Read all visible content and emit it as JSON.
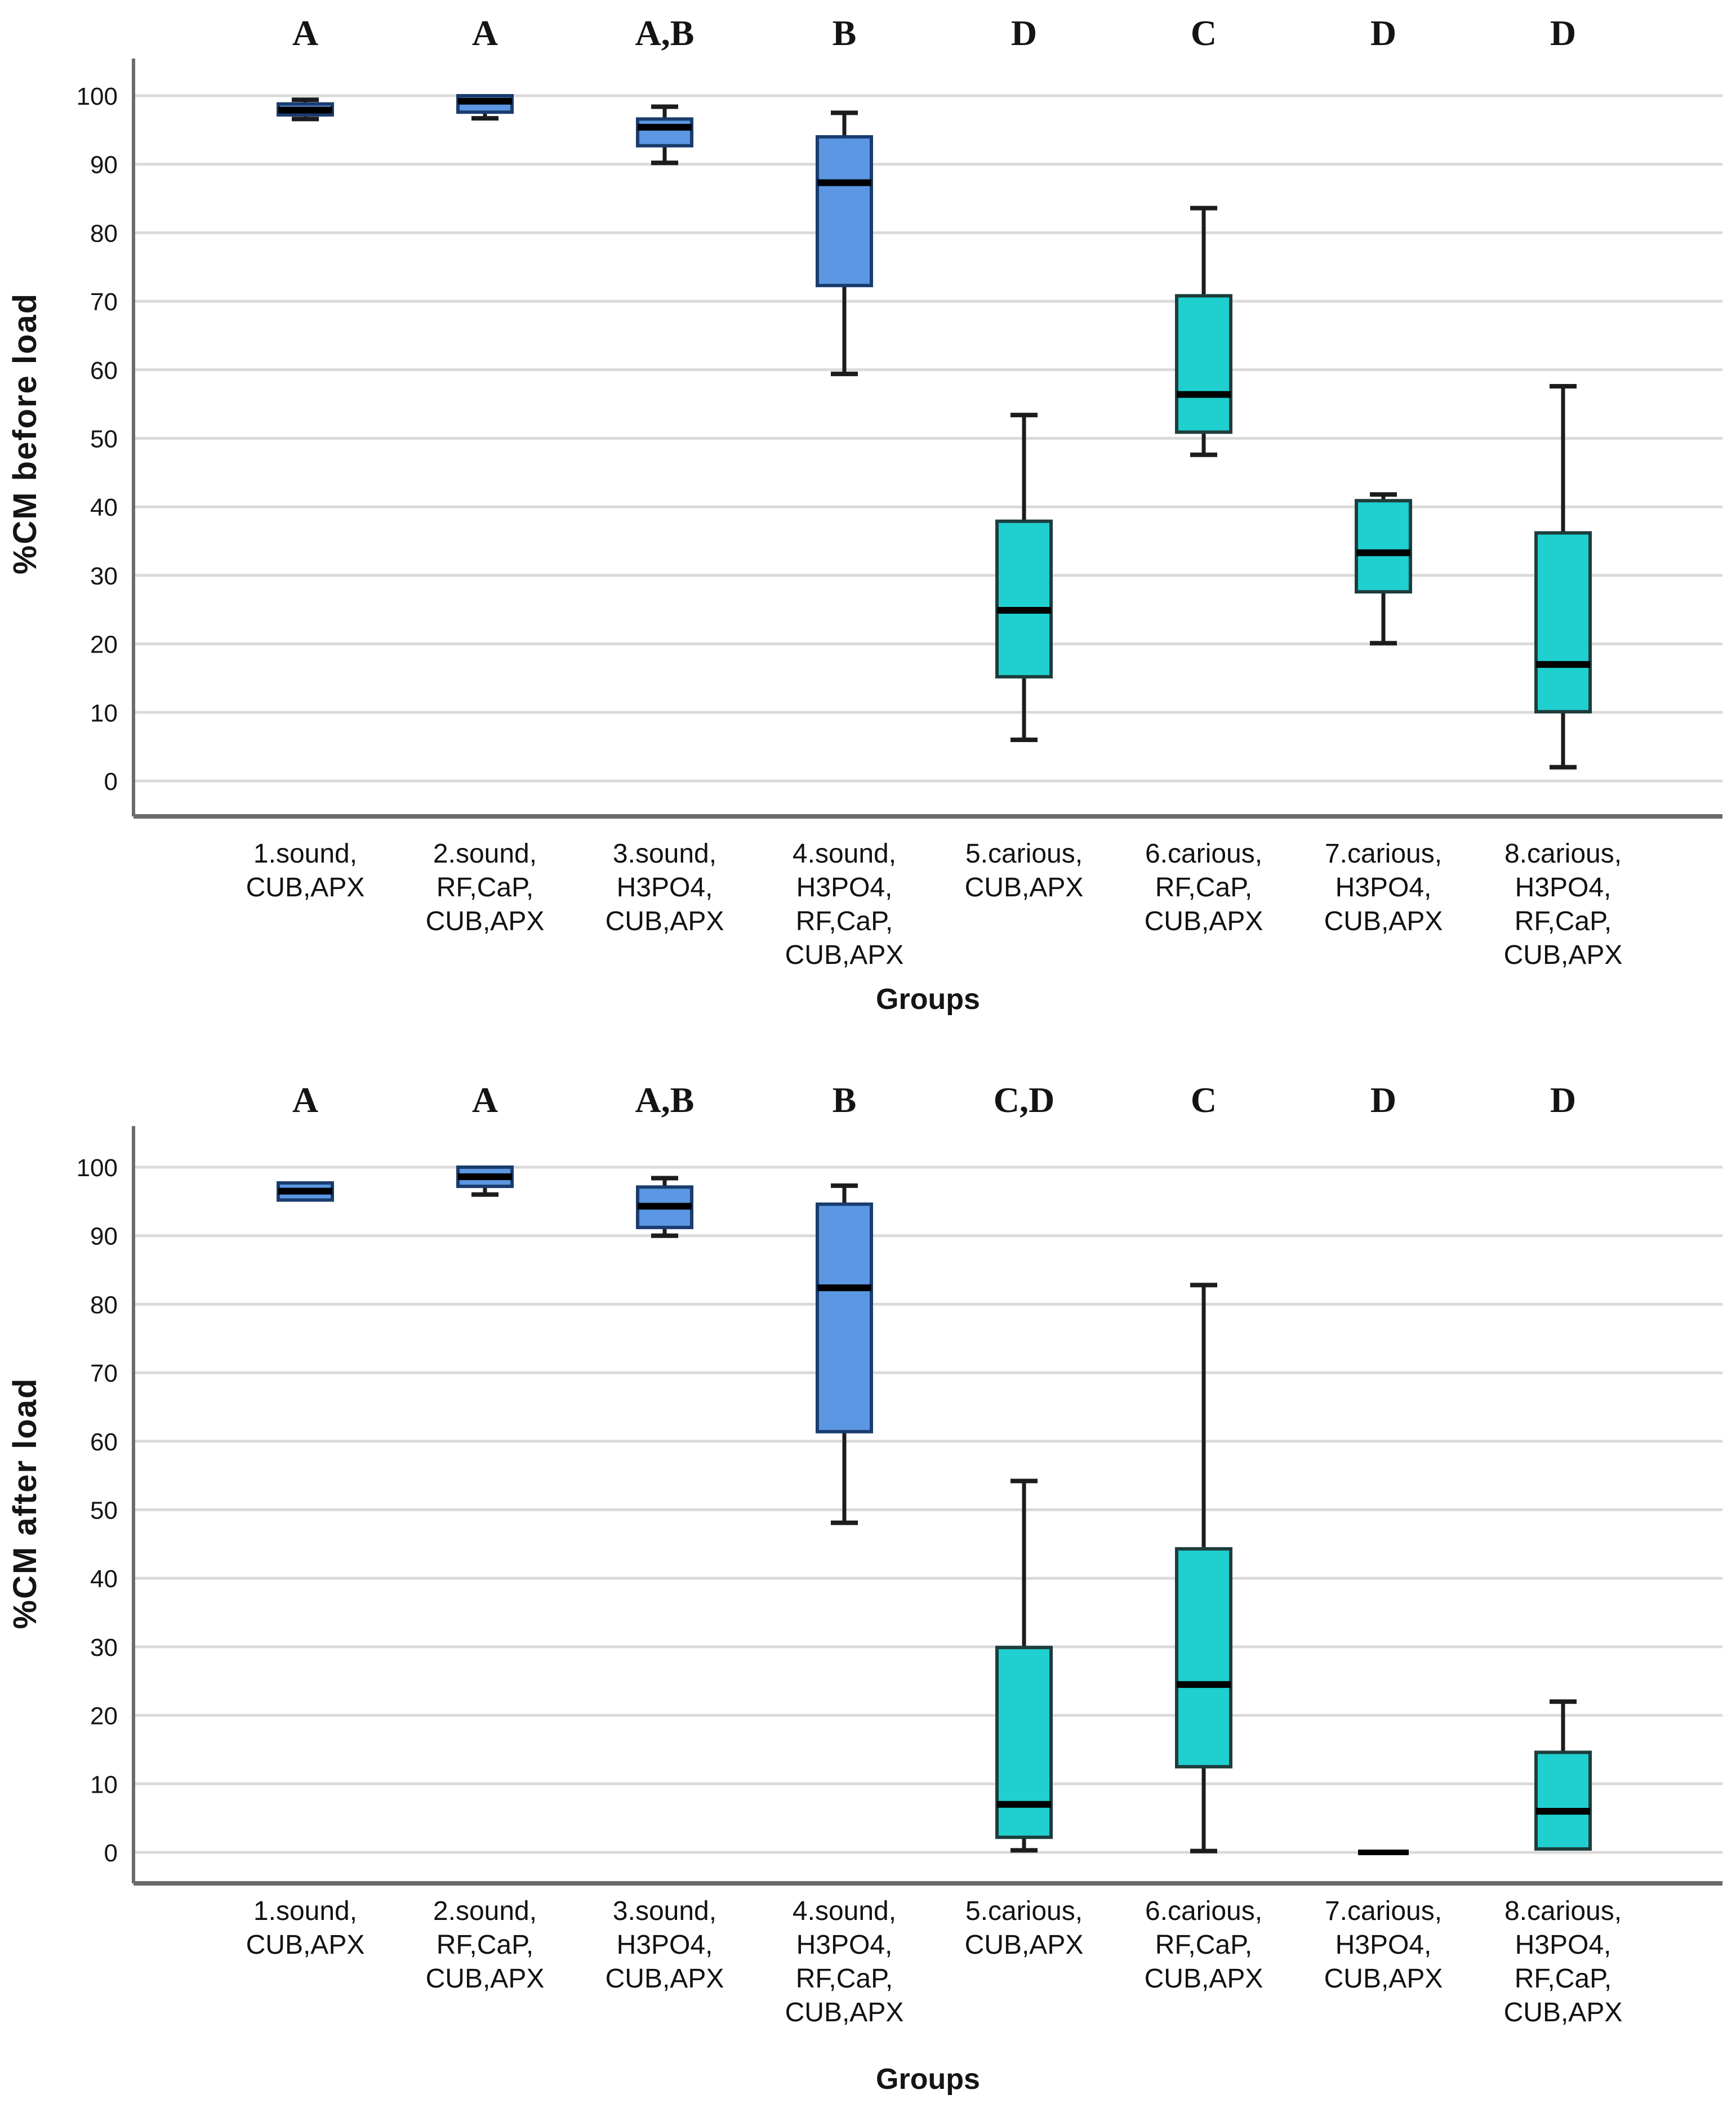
{
  "colors": {
    "blue_fill": "#5B97E3",
    "blue_stroke": "#1A3C6E",
    "teal_fill": "#20CFCF",
    "teal_stroke": "#1E3D3D",
    "median": "#000000",
    "grid": "#DADADA",
    "axis": "#6B6B6B",
    "text": "#141414",
    "background": "#FFFFFF"
  },
  "chart_data": [
    {
      "type": "boxplot",
      "title": "",
      "ylabel": "%CM before load",
      "xlabel": "Groups",
      "ylim": [
        0,
        100
      ],
      "yticks": [
        0,
        10,
        20,
        30,
        40,
        50,
        60,
        70,
        80,
        90,
        100
      ],
      "grid": "horizontal",
      "legend": "none",
      "letters": [
        "A",
        "A",
        "A,B",
        "B",
        "D",
        "C",
        "D",
        "D"
      ],
      "categories": [
        [
          "1.sound,",
          "CUB,APX"
        ],
        [
          "2.sound,",
          "RF,CaP,",
          "CUB,APX"
        ],
        [
          "3.sound,",
          "H3PO4,",
          "CUB,APX"
        ],
        [
          "4.sound,",
          "H3PO4,",
          "RF,CaP,",
          "CUB,APX"
        ],
        [
          "5.carious,",
          "CUB,APX"
        ],
        [
          "6.carious,",
          "RF,CaP,",
          "CUB,APX"
        ],
        [
          "7.carious,",
          "H3PO4,",
          "CUB,APX"
        ],
        [
          "8.carious,",
          "H3PO4,",
          "RF,CaP,",
          "CUB,APX"
        ]
      ],
      "series": [
        {
          "group": 1,
          "letter": "A",
          "color": "blue",
          "whisker_low": 96.6,
          "q1": 97.2,
          "median": 97.9,
          "q3": 98.8,
          "whisker_high": 99.4
        },
        {
          "group": 2,
          "letter": "A",
          "color": "blue",
          "whisker_low": 96.7,
          "q1": 97.6,
          "median": 99.2,
          "q3": 100.0,
          "whisker_high": 100.0
        },
        {
          "group": 3,
          "letter": "A,B",
          "color": "blue",
          "whisker_low": 90.2,
          "q1": 92.7,
          "median": 95.4,
          "q3": 96.6,
          "whisker_high": 98.4
        },
        {
          "group": 4,
          "letter": "B",
          "color": "blue",
          "whisker_low": 59.4,
          "q1": 72.3,
          "median": 87.3,
          "q3": 94.0,
          "whisker_high": 97.5
        },
        {
          "group": 5,
          "letter": "D",
          "color": "teal",
          "whisker_low": 6.0,
          "q1": 15.2,
          "median": 24.9,
          "q3": 37.9,
          "whisker_high": 53.4
        },
        {
          "group": 6,
          "letter": "C",
          "color": "teal",
          "whisker_low": 47.6,
          "q1": 50.9,
          "median": 56.4,
          "q3": 70.8,
          "whisker_high": 83.6
        },
        {
          "group": 7,
          "letter": "D",
          "color": "teal",
          "whisker_low": 20.1,
          "q1": 27.6,
          "median": 33.3,
          "q3": 40.9,
          "whisker_high": 41.8
        },
        {
          "group": 8,
          "letter": "D",
          "color": "teal",
          "whisker_low": 2.0,
          "q1": 10.1,
          "median": 17.0,
          "q3": 36.2,
          "whisker_high": 57.6
        }
      ]
    },
    {
      "type": "boxplot",
      "title": "",
      "ylabel": "%CM after load",
      "xlabel": "Groups",
      "ylim": [
        0,
        100
      ],
      "yticks": [
        0,
        10,
        20,
        30,
        40,
        50,
        60,
        70,
        80,
        90,
        100
      ],
      "grid": "horizontal",
      "legend": "none",
      "letters": [
        "A",
        "A",
        "A,B",
        "B",
        "C,D",
        "C",
        "D",
        "D"
      ],
      "categories": [
        [
          "1.sound,",
          "CUB,APX"
        ],
        [
          "2.sound,",
          "RF,CaP,",
          "CUB,APX"
        ],
        [
          "3.sound,",
          "H3PO4,",
          "CUB,APX"
        ],
        [
          "4.sound,",
          "H3PO4,",
          "RF,CaP,",
          "CUB,APX"
        ],
        [
          "5.carious,",
          "CUB,APX"
        ],
        [
          "6.carious,",
          "RF,CaP,",
          "CUB,APX"
        ],
        [
          "7.carious,",
          "H3PO4,",
          "CUB,APX"
        ],
        [
          "8.carious,",
          "H3PO4,",
          "RF,CaP,",
          "CUB,APX"
        ]
      ],
      "series": [
        {
          "group": 1,
          "letter": "A",
          "color": "blue",
          "whisker_low": 95.2,
          "q1": 95.2,
          "median": 96.5,
          "q3": 97.7,
          "whisker_high": 97.7
        },
        {
          "group": 2,
          "letter": "A",
          "color": "blue",
          "whisker_low": 96.0,
          "q1": 97.2,
          "median": 98.6,
          "q3": 100.0,
          "whisker_high": 100.0
        },
        {
          "group": 3,
          "letter": "A,B",
          "color": "blue",
          "whisker_low": 90.0,
          "q1": 91.2,
          "median": 94.3,
          "q3": 97.1,
          "whisker_high": 98.4
        },
        {
          "group": 4,
          "letter": "B",
          "color": "blue",
          "whisker_low": 48.1,
          "q1": 61.4,
          "median": 82.4,
          "q3": 94.6,
          "whisker_high": 97.3
        },
        {
          "group": 5,
          "letter": "C,D",
          "color": "teal",
          "whisker_low": 0.3,
          "q1": 2.2,
          "median": 7.0,
          "q3": 29.9,
          "whisker_high": 54.2
        },
        {
          "group": 6,
          "letter": "C",
          "color": "teal",
          "whisker_low": 0.2,
          "q1": 12.5,
          "median": 24.5,
          "q3": 44.3,
          "whisker_high": 82.8
        },
        {
          "group": 7,
          "letter": "D",
          "color": "teal",
          "whisker_low": 0.0,
          "q1": 0.0,
          "median": 0.0,
          "q3": 0.0,
          "whisker_high": 0.0
        },
        {
          "group": 8,
          "letter": "D",
          "color": "teal",
          "whisker_low": 0.2,
          "q1": 0.5,
          "median": 6.0,
          "q3": 14.6,
          "whisker_high": 22.0
        }
      ]
    }
  ]
}
